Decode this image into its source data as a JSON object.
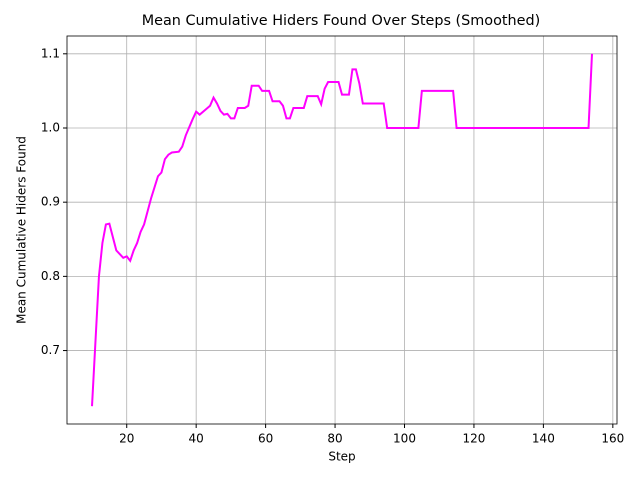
{
  "chart_data": {
    "type": "line",
    "title": "Mean Cumulative Hiders Found Over Steps (Smoothed)",
    "x_label": "Step",
    "y_label": "Mean Cumulative Hiders Found",
    "x": [
      10,
      12,
      13,
      14,
      15,
      17,
      19,
      20,
      21,
      22,
      23,
      24,
      25,
      27,
      29,
      30,
      31,
      32,
      33,
      35,
      36,
      37,
      39,
      40,
      41,
      43,
      44,
      45,
      46,
      47,
      48,
      49,
      50,
      51,
      52,
      54,
      55,
      56,
      58,
      59,
      61,
      62,
      64,
      65,
      66,
      67,
      68,
      71,
      72,
      75,
      76,
      77,
      78,
      81,
      82,
      84,
      85,
      86,
      87,
      88,
      94,
      95,
      104,
      105,
      114,
      115,
      153,
      154
    ],
    "series": [
      {
        "color": "#ff00ff",
        "values": [
          0.625,
          0.8,
          0.845,
          0.87,
          0.871,
          0.835,
          0.825,
          0.827,
          0.821,
          0.835,
          0.845,
          0.86,
          0.87,
          0.905,
          0.935,
          0.94,
          0.958,
          0.964,
          0.967,
          0.968,
          0.975,
          0.99,
          1.012,
          1.022,
          1.018,
          1.026,
          1.03,
          1.041,
          1.033,
          1.023,
          1.018,
          1.019,
          1.013,
          1.013,
          1.027,
          1.027,
          1.03,
          1.057,
          1.057,
          1.05,
          1.05,
          1.036,
          1.036,
          1.03,
          1.013,
          1.013,
          1.027,
          1.027,
          1.043,
          1.043,
          1.032,
          1.053,
          1.062,
          1.062,
          1.045,
          1.045,
          1.079,
          1.079,
          1.06,
          1.033,
          1.033,
          1.0,
          1.0,
          1.05,
          1.05,
          1.0,
          1.0,
          1.1
        ]
      }
    ],
    "xlim": [
      2.8,
      161.2
    ],
    "xticks": [
      20,
      40,
      60,
      80,
      100,
      120,
      140,
      160
    ],
    "ylim": [
      0.601,
      1.124
    ],
    "yticks": [
      0.7,
      0.8,
      0.9,
      {
        "value": 1,
        "label": "1.0"
      },
      1.1
    ],
    "grid": true
  }
}
